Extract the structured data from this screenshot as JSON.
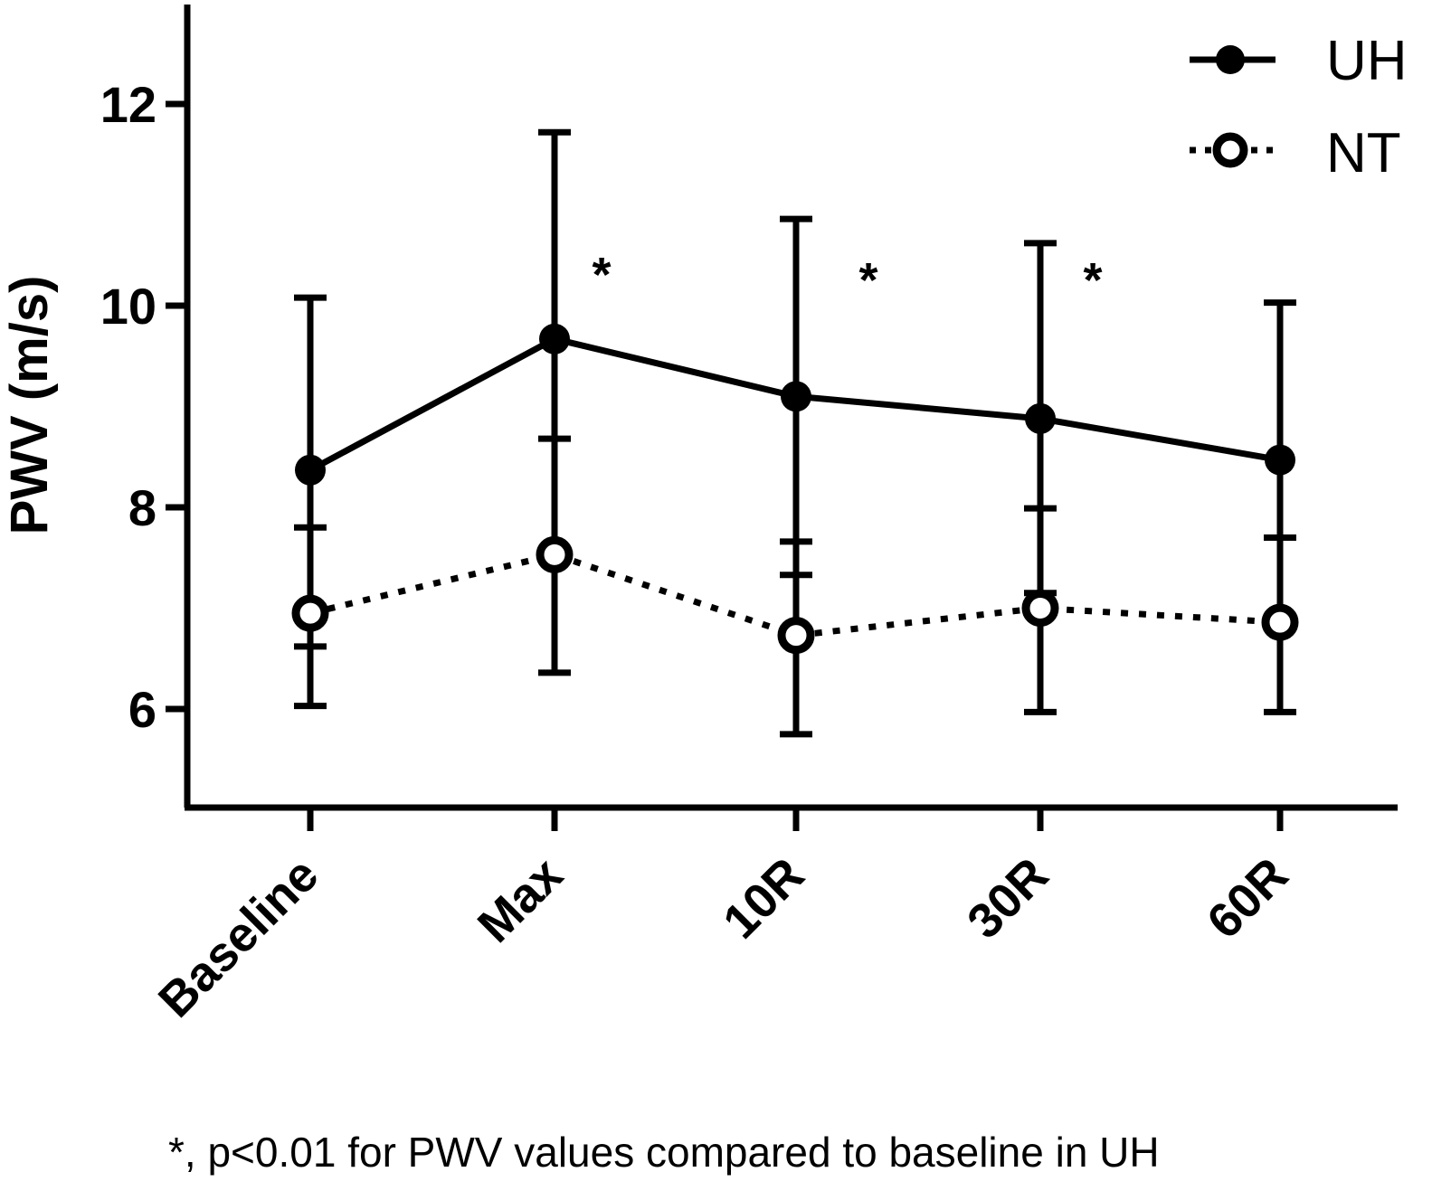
{
  "chart_data": {
    "type": "line",
    "ylabel": "PWV (m/s)",
    "xlabel": "",
    "ylim": [
      5,
      13
    ],
    "yticks": [
      6,
      8,
      10,
      12
    ],
    "categories": [
      "Baseline",
      "Max",
      "10R",
      "30R",
      "60R"
    ],
    "grid": false,
    "legend_position": "top-right",
    "series": [
      {
        "name": "UH",
        "style": "solid",
        "marker": "filled-circle",
        "values": [
          8.37,
          9.67,
          9.1,
          8.88,
          8.47
        ],
        "error_upper": [
          10.08,
          11.72,
          10.86,
          10.62,
          10.03
        ],
        "error_lower": [
          6.62,
          7.52,
          7.33,
          7.15,
          6.85
        ]
      },
      {
        "name": "NT",
        "style": "dotted",
        "marker": "open-circle",
        "values": [
          6.95,
          7.53,
          6.73,
          7.0,
          6.86
        ],
        "error_upper": [
          7.8,
          8.68,
          7.66,
          7.99,
          7.7
        ],
        "error_lower": [
          6.03,
          6.36,
          5.75,
          5.97,
          5.97
        ]
      }
    ],
    "annotations": [
      {
        "text": "*",
        "category": "Max"
      },
      {
        "text": "*",
        "category": "10R"
      },
      {
        "text": "*",
        "category": "30R"
      }
    ],
    "footnote": "*, p<0.01 for PWV values compared to baseline in UH"
  },
  "colors": {
    "line": "#000000",
    "background": "#ffffff"
  }
}
